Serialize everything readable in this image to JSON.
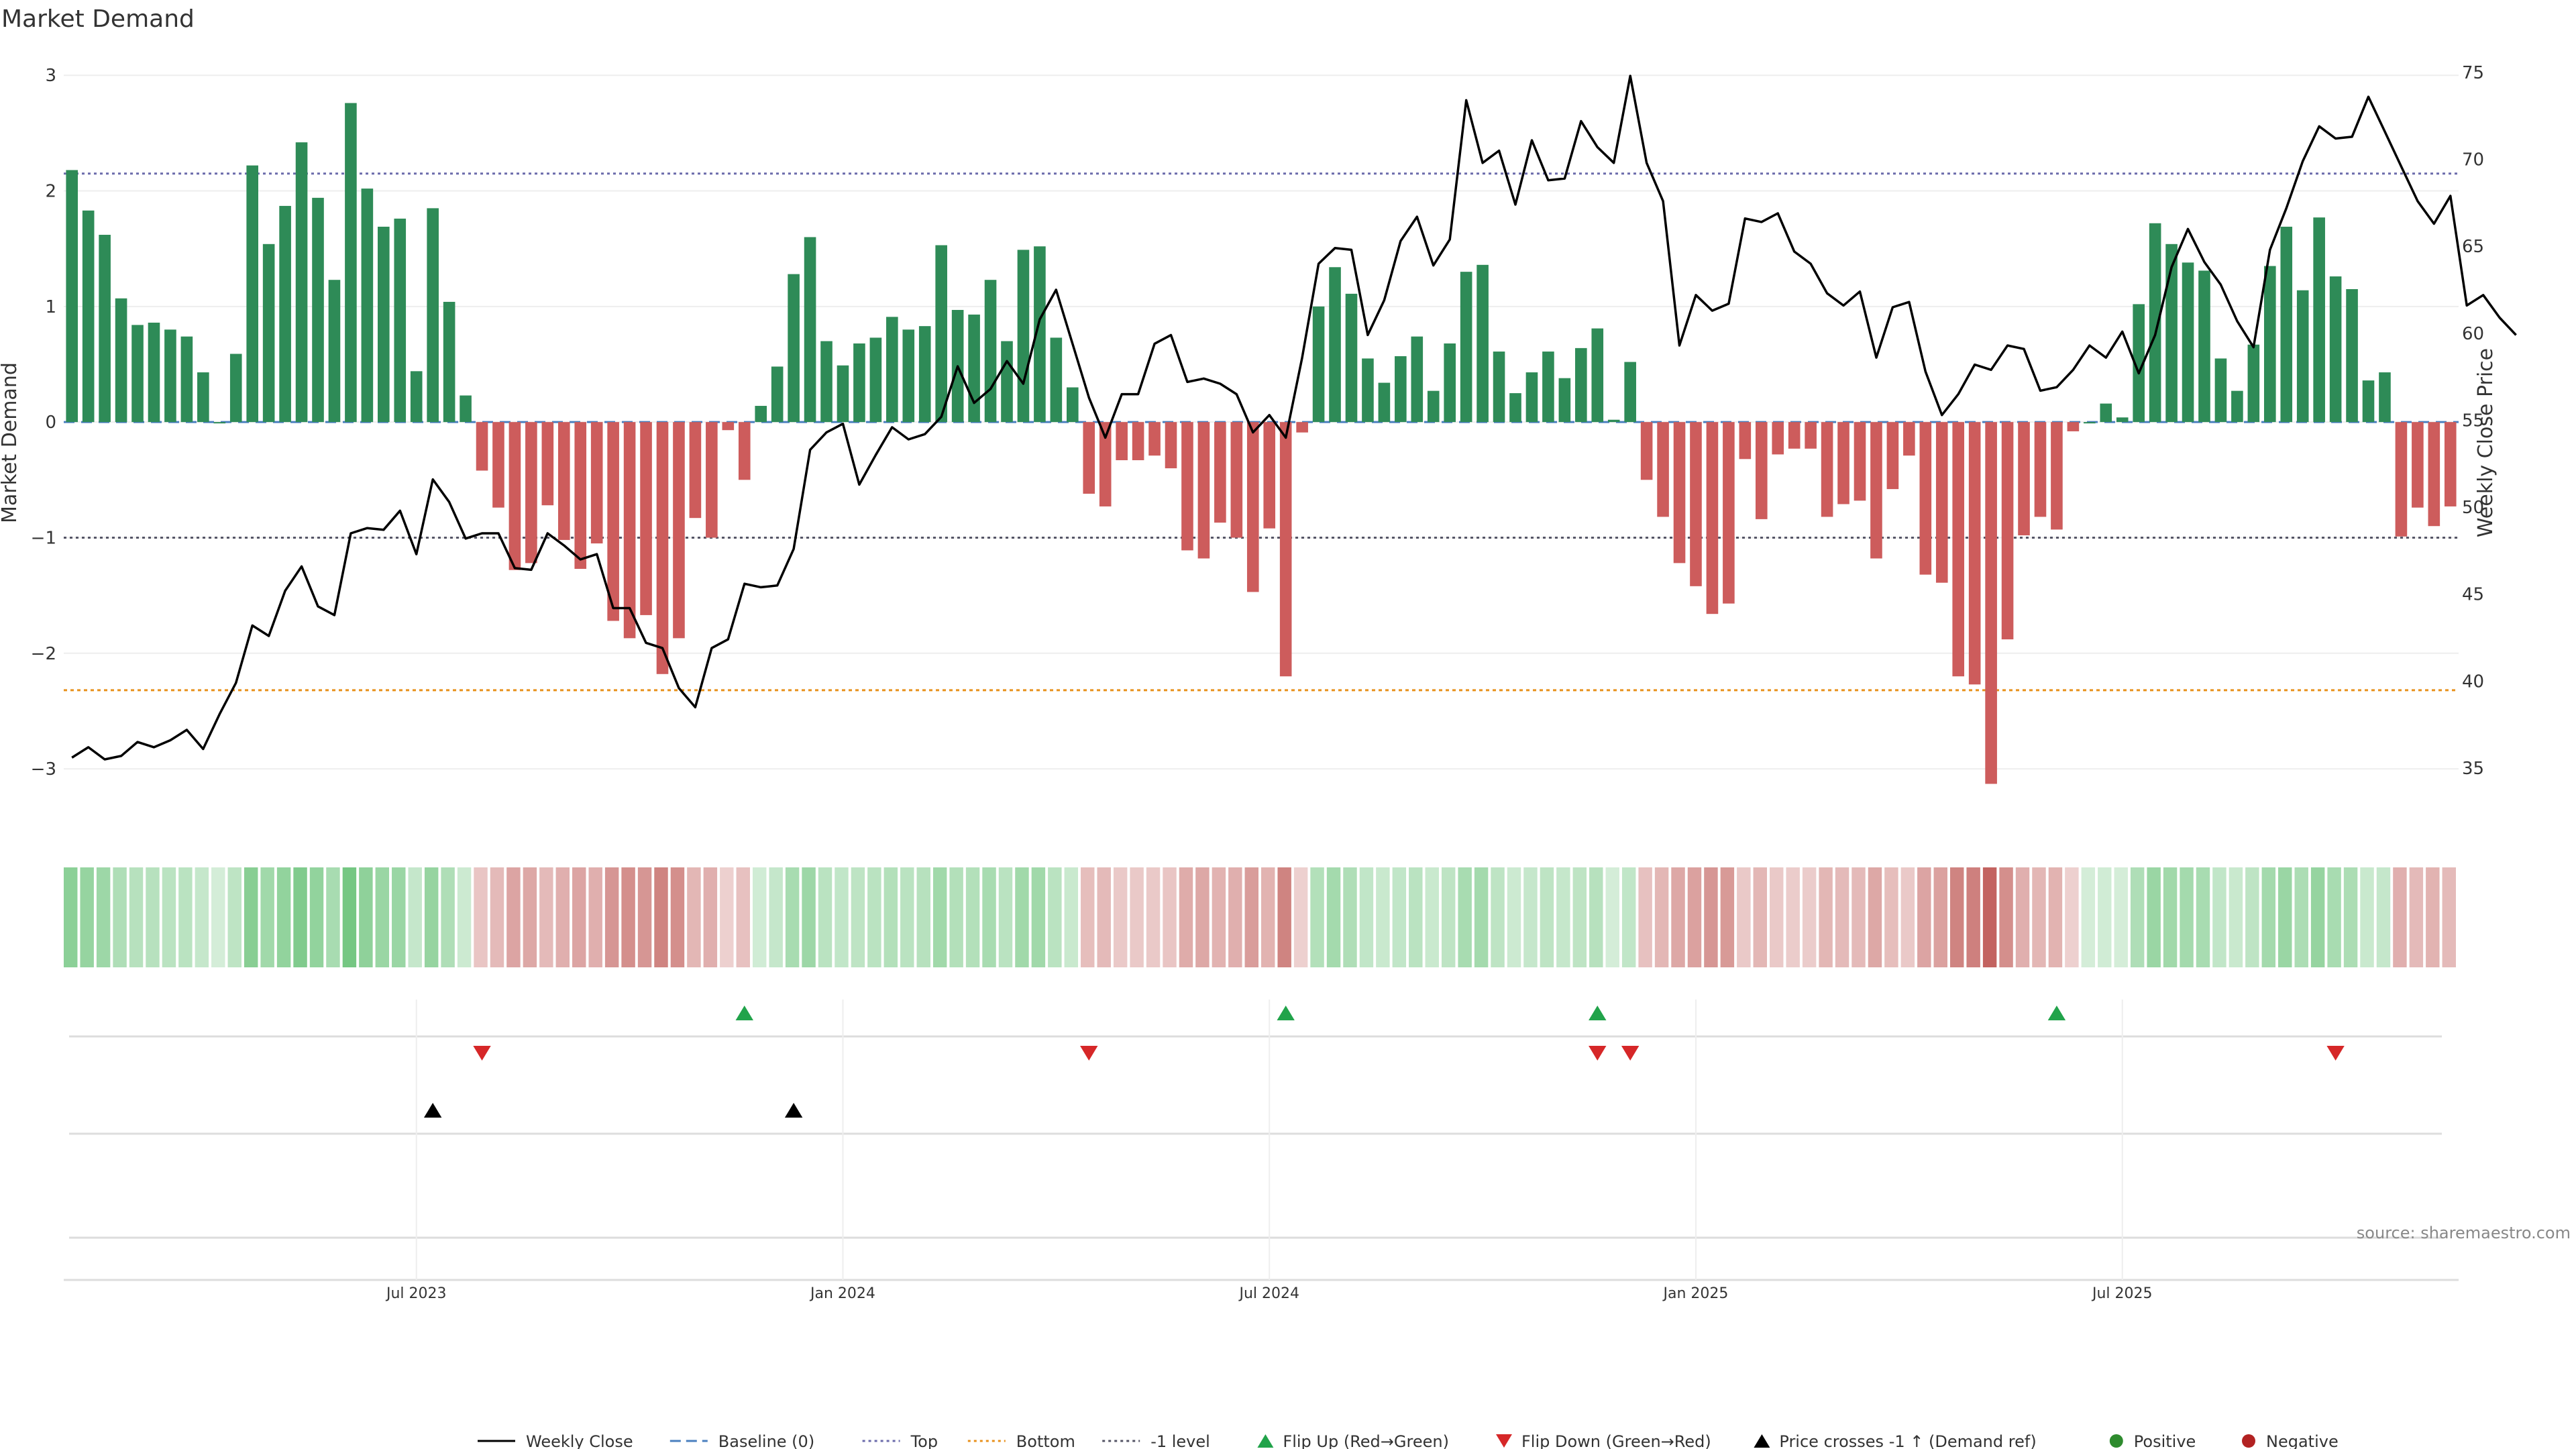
{
  "chart_data": {
    "type": "bar",
    "title": "Market Demand",
    "ylabel": "Market Demand",
    "y2label": "Weekly Close Price",
    "ylim": [
      -3.4,
      3.1
    ],
    "y2lim": [
      32.3,
      75.5
    ],
    "yticks": [
      3,
      2,
      1,
      0,
      -1,
      -2,
      -3
    ],
    "yticks_labels": [
      "3",
      "2",
      "1",
      "0",
      "−1",
      "−2",
      "−3"
    ],
    "y2ticks": [
      75,
      70,
      65,
      60,
      55,
      50,
      45,
      40,
      35
    ],
    "levels": {
      "top": 2.15,
      "bottom": -2.32,
      "minus_one": -1
    },
    "x_start": "2023-01-23",
    "x_ticks": [
      {
        "label": "Jul 2023",
        "week": 21
      },
      {
        "label": "Jan 2024",
        "week": 47
      },
      {
        "label": "Jul 2024",
        "week": 73
      },
      {
        "label": "Jan 2025",
        "week": 99
      },
      {
        "label": "Jul 2025",
        "week": 125
      }
    ],
    "series": [
      {
        "name": "Market Demand",
        "values": [
          2.18,
          1.83,
          1.62,
          1.07,
          0.84,
          0.86,
          0.8,
          0.74,
          0.43,
          0.0,
          0.59,
          2.22,
          1.54,
          1.87,
          2.42,
          1.94,
          1.23,
          2.76,
          2.02,
          1.69,
          1.76,
          0.44,
          1.85,
          1.04,
          0.23,
          -0.42,
          -0.74,
          -1.28,
          -1.22,
          -0.72,
          -1.02,
          -1.27,
          -1.05,
          -1.72,
          -1.87,
          -1.67,
          -2.18,
          -1.87,
          -0.83,
          -1.0,
          -0.07,
          -0.5,
          0.14,
          0.48,
          1.28,
          1.6,
          0.7,
          0.49,
          0.68,
          0.73,
          0.91,
          0.8,
          0.83,
          1.53,
          0.97,
          0.93,
          1.23,
          0.7,
          1.49,
          1.52,
          0.73,
          0.3,
          -0.62,
          -0.73,
          -0.33,
          -0.33,
          -0.29,
          -0.4,
          -1.11,
          -1.18,
          -0.87,
          -1.0,
          -1.47,
          -0.92,
          -2.2,
          -0.09,
          1.0,
          1.34,
          1.11,
          0.55,
          0.34,
          0.57,
          0.74,
          0.27,
          0.68,
          1.3,
          1.36,
          0.61,
          0.25,
          0.43,
          0.61,
          0.38,
          0.64,
          0.81,
          0.02,
          0.52,
          -0.5,
          -0.82,
          -1.22,
          -1.42,
          -1.66,
          -1.57,
          -0.32,
          -0.84,
          -0.28,
          -0.23,
          -0.23,
          -0.82,
          -0.71,
          -0.68,
          -1.18,
          -0.58,
          -0.29,
          -1.32,
          -1.39,
          -2.2,
          -2.27,
          -3.13,
          -1.88,
          -0.98,
          -0.82,
          -0.93,
          -0.08,
          0.0,
          0.16,
          0.04,
          1.02,
          1.72,
          1.54,
          1.38,
          1.31,
          0.55,
          0.27,
          0.67,
          1.35,
          1.69,
          1.14,
          1.77,
          1.26,
          1.15,
          0.36,
          0.43,
          -0.99,
          -0.74,
          -0.9,
          -0.73
        ]
      },
      {
        "name": "Weekly Close",
        "values": [
          35.6,
          36.2,
          35.5,
          35.7,
          36.5,
          36.2,
          36.6,
          37.2,
          36.1,
          38.1,
          39.9,
          43.2,
          42.6,
          45.2,
          46.6,
          44.3,
          43.8,
          48.5,
          48.8,
          48.7,
          49.8,
          47.3,
          51.6,
          50.3,
          48.2,
          48.5,
          48.5,
          46.5,
          46.4,
          48.5,
          47.8,
          47.0,
          47.3,
          44.2,
          44.2,
          42.2,
          41.9,
          39.6,
          38.5,
          41.9,
          42.4,
          45.6,
          45.4,
          45.5,
          47.6,
          53.3,
          54.3,
          54.8,
          51.3,
          53.0,
          54.6,
          53.9,
          54.2,
          55.2,
          58.1,
          56.0,
          56.8,
          58.4,
          57.1,
          60.8,
          62.5,
          59.4,
          56.3,
          54.0,
          56.5,
          56.5,
          59.4,
          59.9,
          57.2,
          57.4,
          57.1,
          56.5,
          54.3,
          55.3,
          54.0,
          58.6,
          64.0,
          64.9,
          64.8,
          59.9,
          61.9,
          65.3,
          66.7,
          63.9,
          65.4,
          73.4,
          69.8,
          70.5,
          67.4,
          71.1,
          68.8,
          68.9,
          72.2,
          70.7,
          69.8,
          74.8,
          69.8,
          67.6,
          59.3,
          62.2,
          61.3,
          61.7,
          66.6,
          66.4,
          66.9,
          64.7,
          64.0,
          62.3,
          61.6,
          62.4,
          58.6,
          61.5,
          61.8,
          57.8,
          55.3,
          56.5,
          58.2,
          57.9,
          59.3,
          59.1,
          56.7,
          56.9,
          57.9,
          59.3,
          58.6,
          60.1,
          57.7,
          59.9,
          63.8,
          66.0,
          64.1,
          62.8,
          60.7,
          59.2,
          64.8,
          67.2,
          69.9,
          71.9,
          71.2,
          71.3,
          73.6,
          71.6,
          69.6,
          67.6,
          66.3,
          67.9,
          61.6,
          62.2,
          60.9,
          59.9
        ]
      }
    ],
    "flip_up_weeks": [
      41,
      74,
      93,
      121
    ],
    "flip_down_weeks": [
      25,
      62,
      93,
      95,
      138
    ],
    "price_cross_weeks": [
      22,
      44
    ]
  },
  "legend": [
    {
      "label": "Weekly Close",
      "symbol": "line",
      "color": "#000000"
    },
    {
      "label": "Baseline (0)",
      "symbol": "dash",
      "color": "#4a7fbf"
    },
    {
      "label": "Top",
      "symbol": "dot",
      "color": "#6b6bab"
    },
    {
      "label": "Bottom",
      "symbol": "dot",
      "color": "#e8911c"
    },
    {
      "label": "-1 level",
      "symbol": "dot",
      "color": "#555566"
    },
    {
      "label": "Flip Up (Red→Green)",
      "symbol": "tri-up",
      "color": "#21a34a"
    },
    {
      "label": "Flip Down (Green→Red)",
      "symbol": "tri-down",
      "color": "#d62728"
    },
    {
      "label": "Price crosses -1 ↑ (Demand ref)",
      "symbol": "tri-up",
      "color": "#000000"
    },
    {
      "label": "Positive",
      "symbol": "circle",
      "color": "#2e8b2e"
    },
    {
      "label": "Negative",
      "symbol": "circle",
      "color": "#b22222"
    }
  ],
  "colors": {
    "positive_bar": "#2e8b57",
    "negative_bar": "#cd5c5c",
    "price_line": "#000000",
    "top_line": "#6b6bab",
    "bottom_line": "#e8911c",
    "minus_one_line": "#555566",
    "baseline": "#4a7fbf",
    "flip_up": "#21a34a",
    "flip_down": "#d62728",
    "cross": "#000000"
  },
  "source": "source: sharemaestro.com"
}
